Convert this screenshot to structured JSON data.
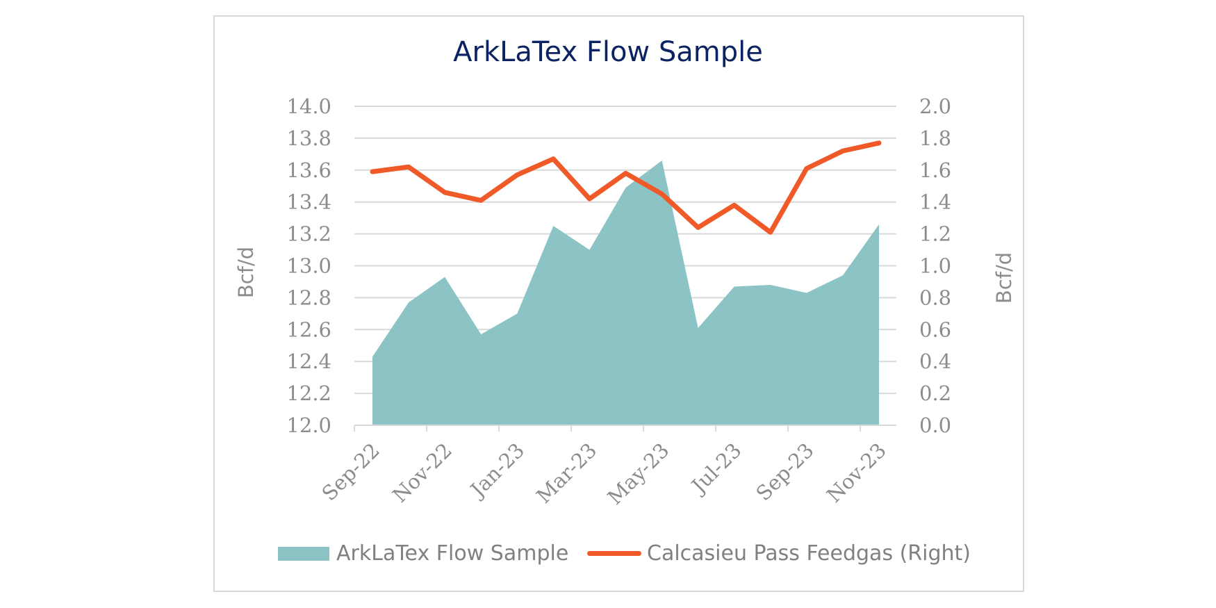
{
  "chart_data": {
    "type": "area",
    "title": "ArkLaTex Flow Sample",
    "ylabel": "Bcf/d",
    "y2label": "Bcf/d",
    "ylim": [
      12.0,
      14.0
    ],
    "y2lim": [
      0.0,
      2.0
    ],
    "y_ticks": [
      "14.0",
      "13.8",
      "13.6",
      "13.4",
      "13.2",
      "13.0",
      "12.8",
      "12.6",
      "12.4",
      "12.2",
      "12.0"
    ],
    "y2_ticks": [
      "2.0",
      "1.8",
      "1.6",
      "1.4",
      "1.2",
      "1.0",
      "0.8",
      "0.6",
      "0.4",
      "0.2",
      "0.0"
    ],
    "x_tick_labels": [
      "Sep-22",
      "Nov-22",
      "Jan-23",
      "Mar-23",
      "May-23",
      "Jul-23",
      "Sep-23",
      "Nov-23"
    ],
    "x": [
      "Sep-22",
      "Oct-22",
      "Nov-22",
      "Dec-22",
      "Jan-23",
      "Feb-23",
      "Mar-23",
      "Apr-23",
      "May-23",
      "Jun-23",
      "Jul-23",
      "Aug-23",
      "Sep-23",
      "Oct-23",
      "Nov-23"
    ],
    "grid": true,
    "legend_position": "bottom",
    "series": [
      {
        "name": "ArkLaTex Flow Sample",
        "type": "area",
        "axis": "left",
        "color": "#8cc4c6",
        "values": [
          12.43,
          12.77,
          12.93,
          12.57,
          12.7,
          13.25,
          13.1,
          13.49,
          13.66,
          12.61,
          12.87,
          12.88,
          12.83,
          12.94,
          13.26
        ]
      },
      {
        "name": "Calcasieu Pass Feedgas (Right)",
        "type": "line",
        "axis": "right",
        "color": "#f05a28",
        "values": [
          1.59,
          1.62,
          1.46,
          1.41,
          1.57,
          1.67,
          1.42,
          1.58,
          1.45,
          1.24,
          1.38,
          1.21,
          1.61,
          1.72,
          1.77
        ]
      }
    ]
  }
}
